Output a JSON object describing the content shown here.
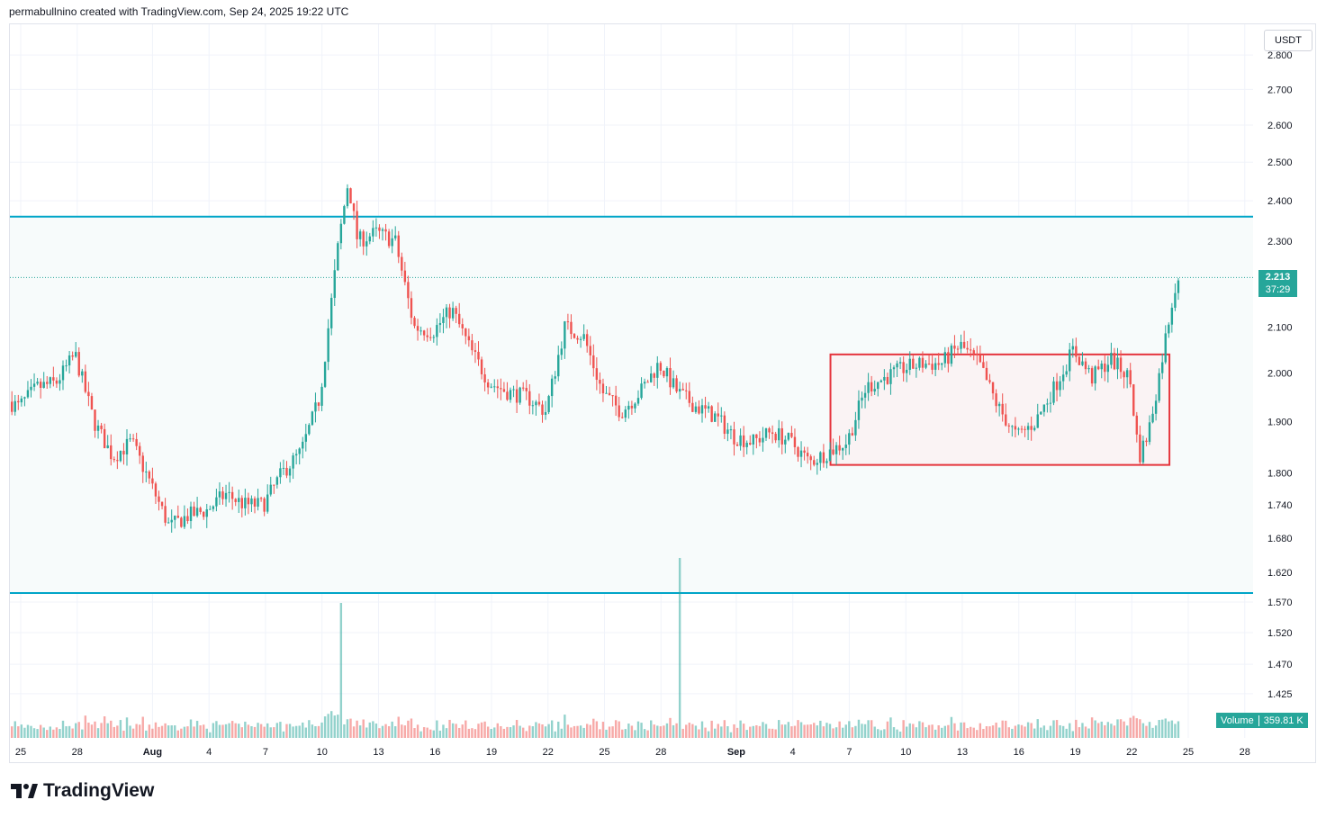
{
  "header": {
    "text": "permabullnino created with TradingView.com, Sep 24, 2025 19:22 UTC"
  },
  "currency": "USDT",
  "footer": {
    "brand": "TradingView"
  },
  "last_price": {
    "price": "2.213",
    "countdown": "37:29"
  },
  "volume": {
    "label": "Volume",
    "value": "359.81 K"
  },
  "colors": {
    "up": "#26a69a",
    "down": "#ef5350",
    "level_line": "#00a5c8",
    "box_border": "#e5353d",
    "box_fill": "#fbeff1",
    "band_fill": "#f7fbfb",
    "grid": "#f0f3fa"
  },
  "chart_data": {
    "type": "candlestick",
    "scale": "log",
    "y_ticks": [
      "2.800",
      "2.700",
      "2.600",
      "2.500",
      "2.400",
      "2.300",
      "2.100",
      "2.000",
      "1.900",
      "1.800",
      "1.740",
      "1.680",
      "1.620",
      "1.570",
      "1.520",
      "1.470",
      "1.425"
    ],
    "x_ticks": [
      "25",
      "28",
      "Aug",
      "4",
      "7",
      "10",
      "13",
      "16",
      "19",
      "22",
      "25",
      "28",
      "Sep",
      "4",
      "7",
      "10",
      "13",
      "16",
      "19",
      "22",
      "25",
      "28"
    ],
    "x_tick_dates": [
      "2025-07-25",
      "2025-07-28",
      "2025-08-01",
      "2025-08-04",
      "2025-08-07",
      "2025-08-10",
      "2025-08-13",
      "2025-08-16",
      "2025-08-19",
      "2025-08-22",
      "2025-08-25",
      "2025-08-28",
      "2025-09-01",
      "2025-09-04",
      "2025-09-07",
      "2025-09-10",
      "2025-09-13",
      "2025-09-16",
      "2025-09-19",
      "2025-09-22",
      "2025-09-25",
      "2025-09-28"
    ],
    "horizontal_levels": [
      2.36,
      1.585
    ],
    "last_price": 2.213,
    "range_box": {
      "start": "2025-09-06",
      "end": "2025-09-24",
      "top": 2.04,
      "bottom": 1.815
    },
    "price_path": [
      [
        "2025-07-24",
        1.95
      ],
      [
        "2025-07-25",
        1.93
      ],
      [
        "2025-07-26",
        1.97
      ],
      [
        "2025-07-27",
        1.98
      ],
      [
        "2025-07-28",
        2.04
      ],
      [
        "2025-07-29",
        1.9
      ],
      [
        "2025-07-30",
        1.83
      ],
      [
        "2025-07-31",
        1.86
      ],
      [
        "2025-08-01",
        1.78
      ],
      [
        "2025-08-02",
        1.7
      ],
      [
        "2025-08-03",
        1.72
      ],
      [
        "2025-08-04",
        1.73
      ],
      [
        "2025-08-05",
        1.76
      ],
      [
        "2025-08-06",
        1.74
      ],
      [
        "2025-08-07",
        1.74
      ],
      [
        "2025-08-08",
        1.8
      ],
      [
        "2025-08-09",
        1.84
      ],
      [
        "2025-08-10",
        1.95
      ],
      [
        "2025-08-11",
        2.3
      ],
      [
        "2025-08-11T12",
        2.45
      ],
      [
        "2025-08-12",
        2.3
      ],
      [
        "2025-08-13",
        2.32
      ],
      [
        "2025-08-14",
        2.3
      ],
      [
        "2025-08-15",
        2.1
      ],
      [
        "2025-08-16",
        2.09
      ],
      [
        "2025-08-17",
        2.14
      ],
      [
        "2025-08-18",
        2.05
      ],
      [
        "2025-08-19",
        1.98
      ],
      [
        "2025-08-20",
        1.96
      ],
      [
        "2025-08-21",
        1.95
      ],
      [
        "2025-08-22",
        1.92
      ],
      [
        "2025-08-23",
        2.1
      ],
      [
        "2025-08-24",
        2.08
      ],
      [
        "2025-08-25",
        1.96
      ],
      [
        "2025-08-26",
        1.92
      ],
      [
        "2025-08-27",
        1.96
      ],
      [
        "2025-08-28",
        2.02
      ],
      [
        "2025-08-29",
        1.96
      ],
      [
        "2025-08-30",
        1.93
      ],
      [
        "2025-08-31",
        1.91
      ],
      [
        "2025-09-01",
        1.87
      ],
      [
        "2025-09-02",
        1.86
      ],
      [
        "2025-09-03",
        1.88
      ],
      [
        "2025-09-04",
        1.86
      ],
      [
        "2025-09-05",
        1.82
      ],
      [
        "2025-09-06",
        1.84
      ],
      [
        "2025-09-07",
        1.86
      ],
      [
        "2025-09-08",
        1.97
      ],
      [
        "2025-09-09",
        1.99
      ],
      [
        "2025-09-10",
        2.01
      ],
      [
        "2025-09-11",
        2.02
      ],
      [
        "2025-09-12",
        2.02
      ],
      [
        "2025-09-13",
        2.06
      ],
      [
        "2025-09-14",
        2.02
      ],
      [
        "2025-09-15",
        1.93
      ],
      [
        "2025-09-16",
        1.87
      ],
      [
        "2025-09-17",
        1.9
      ],
      [
        "2025-09-18",
        1.97
      ],
      [
        "2025-09-19",
        2.05
      ],
      [
        "2025-09-20",
        1.99
      ],
      [
        "2025-09-21",
        2.03
      ],
      [
        "2025-09-22",
        1.99
      ],
      [
        "2025-09-22T12",
        1.83
      ],
      [
        "2025-09-23",
        1.88
      ],
      [
        "2025-09-23T12",
        1.98
      ],
      [
        "2025-09-24",
        2.1
      ],
      [
        "2025-09-24T12",
        2.213
      ]
    ],
    "notable_volume_spikes": [
      {
        "date": "2025-08-11",
        "relative": 0.75
      },
      {
        "date": "2025-08-29",
        "relative": 1.0
      }
    ]
  }
}
